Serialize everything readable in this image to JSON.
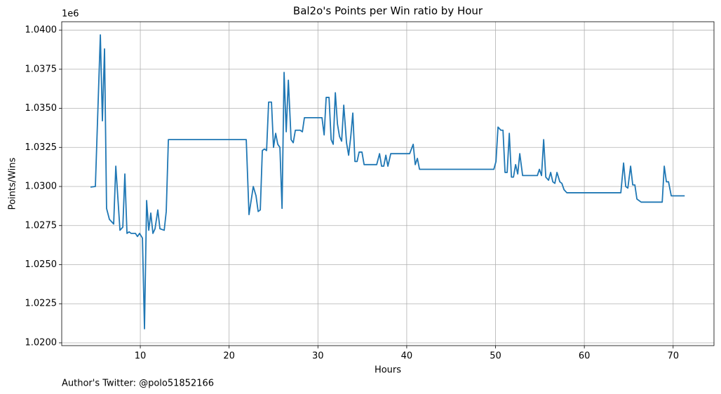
{
  "chart_data": {
    "type": "line",
    "title": "Bal2o's Points per Win ratio by Hour",
    "x_label": "Hours",
    "y_label": "Points/Wins",
    "y_offset_label": "1e6",
    "footnote": "Author's Twitter: @polo51852166",
    "grid": true,
    "xlim": [
      1.15,
      74.6
    ],
    "ylim": [
      1.01982,
      1.04054
    ],
    "xticks": [
      10,
      20,
      30,
      40,
      50,
      60,
      70
    ],
    "yticks": [
      {
        "value": 1.02,
        "label": "1.0200"
      },
      {
        "value": 1.0225,
        "label": "1.0225"
      },
      {
        "value": 1.025,
        "label": "1.0250"
      },
      {
        "value": 1.0275,
        "label": "1.0275"
      },
      {
        "value": 1.03,
        "label": "1.0300"
      },
      {
        "value": 1.0325,
        "label": "1.0325"
      },
      {
        "value": 1.035,
        "label": "1.0350"
      },
      {
        "value": 1.0375,
        "label": "1.0375"
      },
      {
        "value": 1.04,
        "label": "1.0400"
      }
    ],
    "x": [
      4.39,
      4.94,
      5.5,
      5.73,
      5.97,
      6.2,
      6.52,
      7.0,
      7.24,
      7.71,
      8.03,
      8.26,
      8.5,
      8.74,
      8.97,
      9.45,
      9.68,
      9.92,
      10.24,
      10.47,
      10.71,
      10.95,
      11.18,
      11.42,
      11.66,
      11.97,
      12.21,
      12.69,
      12.92,
      13.16,
      21.93,
      22.24,
      22.72,
      23.03,
      23.27,
      23.51,
      23.74,
      23.98,
      24.22,
      24.45,
      24.77,
      25.0,
      25.24,
      25.48,
      25.72,
      25.96,
      26.19,
      26.43,
      26.67,
      26.98,
      27.22,
      27.46,
      28.0,
      28.25,
      28.48,
      30.46,
      30.7,
      30.93,
      31.25,
      31.49,
      31.72,
      31.96,
      32.2,
      32.43,
      32.67,
      32.91,
      33.22,
      33.46,
      33.7,
      33.93,
      34.17,
      34.41,
      34.64,
      34.96,
      35.2,
      36.62,
      36.94,
      37.17,
      37.41,
      37.65,
      37.88,
      38.2,
      40.33,
      40.73,
      40.96,
      41.2,
      41.44,
      49.81,
      50.05,
      50.28,
      50.6,
      50.84,
      51.07,
      51.31,
      51.55,
      51.79,
      52.02,
      52.26,
      52.5,
      52.73,
      53.05,
      54.71,
      54.94,
      55.18,
      55.42,
      55.66,
      55.97,
      56.21,
      56.45,
      56.68,
      56.92,
      57.24,
      57.47,
      57.71,
      58.03,
      64.11,
      64.42,
      64.66,
      64.9,
      65.21,
      65.45,
      65.69,
      65.92,
      66.4,
      68.77,
      69.0,
      69.24,
      69.48,
      69.79,
      71.3
    ],
    "series": [
      {
        "color": "#1f77b4",
        "values": [
          1.02996,
          1.03,
          1.0397,
          1.0342,
          1.0388,
          1.0286,
          1.0279,
          1.0276,
          1.0313,
          1.0272,
          1.0274,
          1.0308,
          1.027,
          1.0271,
          1.027,
          1.027,
          1.0268,
          1.027,
          1.0267,
          1.0209,
          1.0291,
          1.0272,
          1.0283,
          1.027,
          1.0273,
          1.0285,
          1.0273,
          1.0272,
          1.0284,
          1.033,
          1.033,
          1.0282,
          1.03,
          1.0294,
          1.0284,
          1.0285,
          1.0323,
          1.0324,
          1.0323,
          1.0354,
          1.0354,
          1.0325,
          1.0334,
          1.0327,
          1.0325,
          1.0286,
          1.0373,
          1.0335,
          1.0368,
          1.033,
          1.0328,
          1.0336,
          1.0336,
          1.0335,
          1.0344,
          1.0344,
          1.0333,
          1.0357,
          1.0357,
          1.033,
          1.0327,
          1.036,
          1.034,
          1.0332,
          1.0329,
          1.0352,
          1.0328,
          1.032,
          1.0332,
          1.0347,
          1.0316,
          1.0316,
          1.0322,
          1.0322,
          1.0314,
          1.0314,
          1.0321,
          1.0313,
          1.0313,
          1.032,
          1.0313,
          1.0321,
          1.0321,
          1.0327,
          1.0314,
          1.0318,
          1.0311,
          1.0311,
          1.0316,
          1.0338,
          1.0336,
          1.0336,
          1.0309,
          1.0309,
          1.0334,
          1.0306,
          1.0306,
          1.0314,
          1.0308,
          1.0321,
          1.0307,
          1.0307,
          1.0311,
          1.0307,
          1.033,
          1.0306,
          1.0304,
          1.0309,
          1.0303,
          1.0302,
          1.0309,
          1.0303,
          1.0302,
          1.0298,
          1.0296,
          1.0296,
          1.0315,
          1.03,
          1.0299,
          1.0313,
          1.0301,
          1.0301,
          1.0292,
          1.029,
          1.029,
          1.0313,
          1.0303,
          1.0303,
          1.0294,
          1.0294
        ]
      }
    ]
  }
}
